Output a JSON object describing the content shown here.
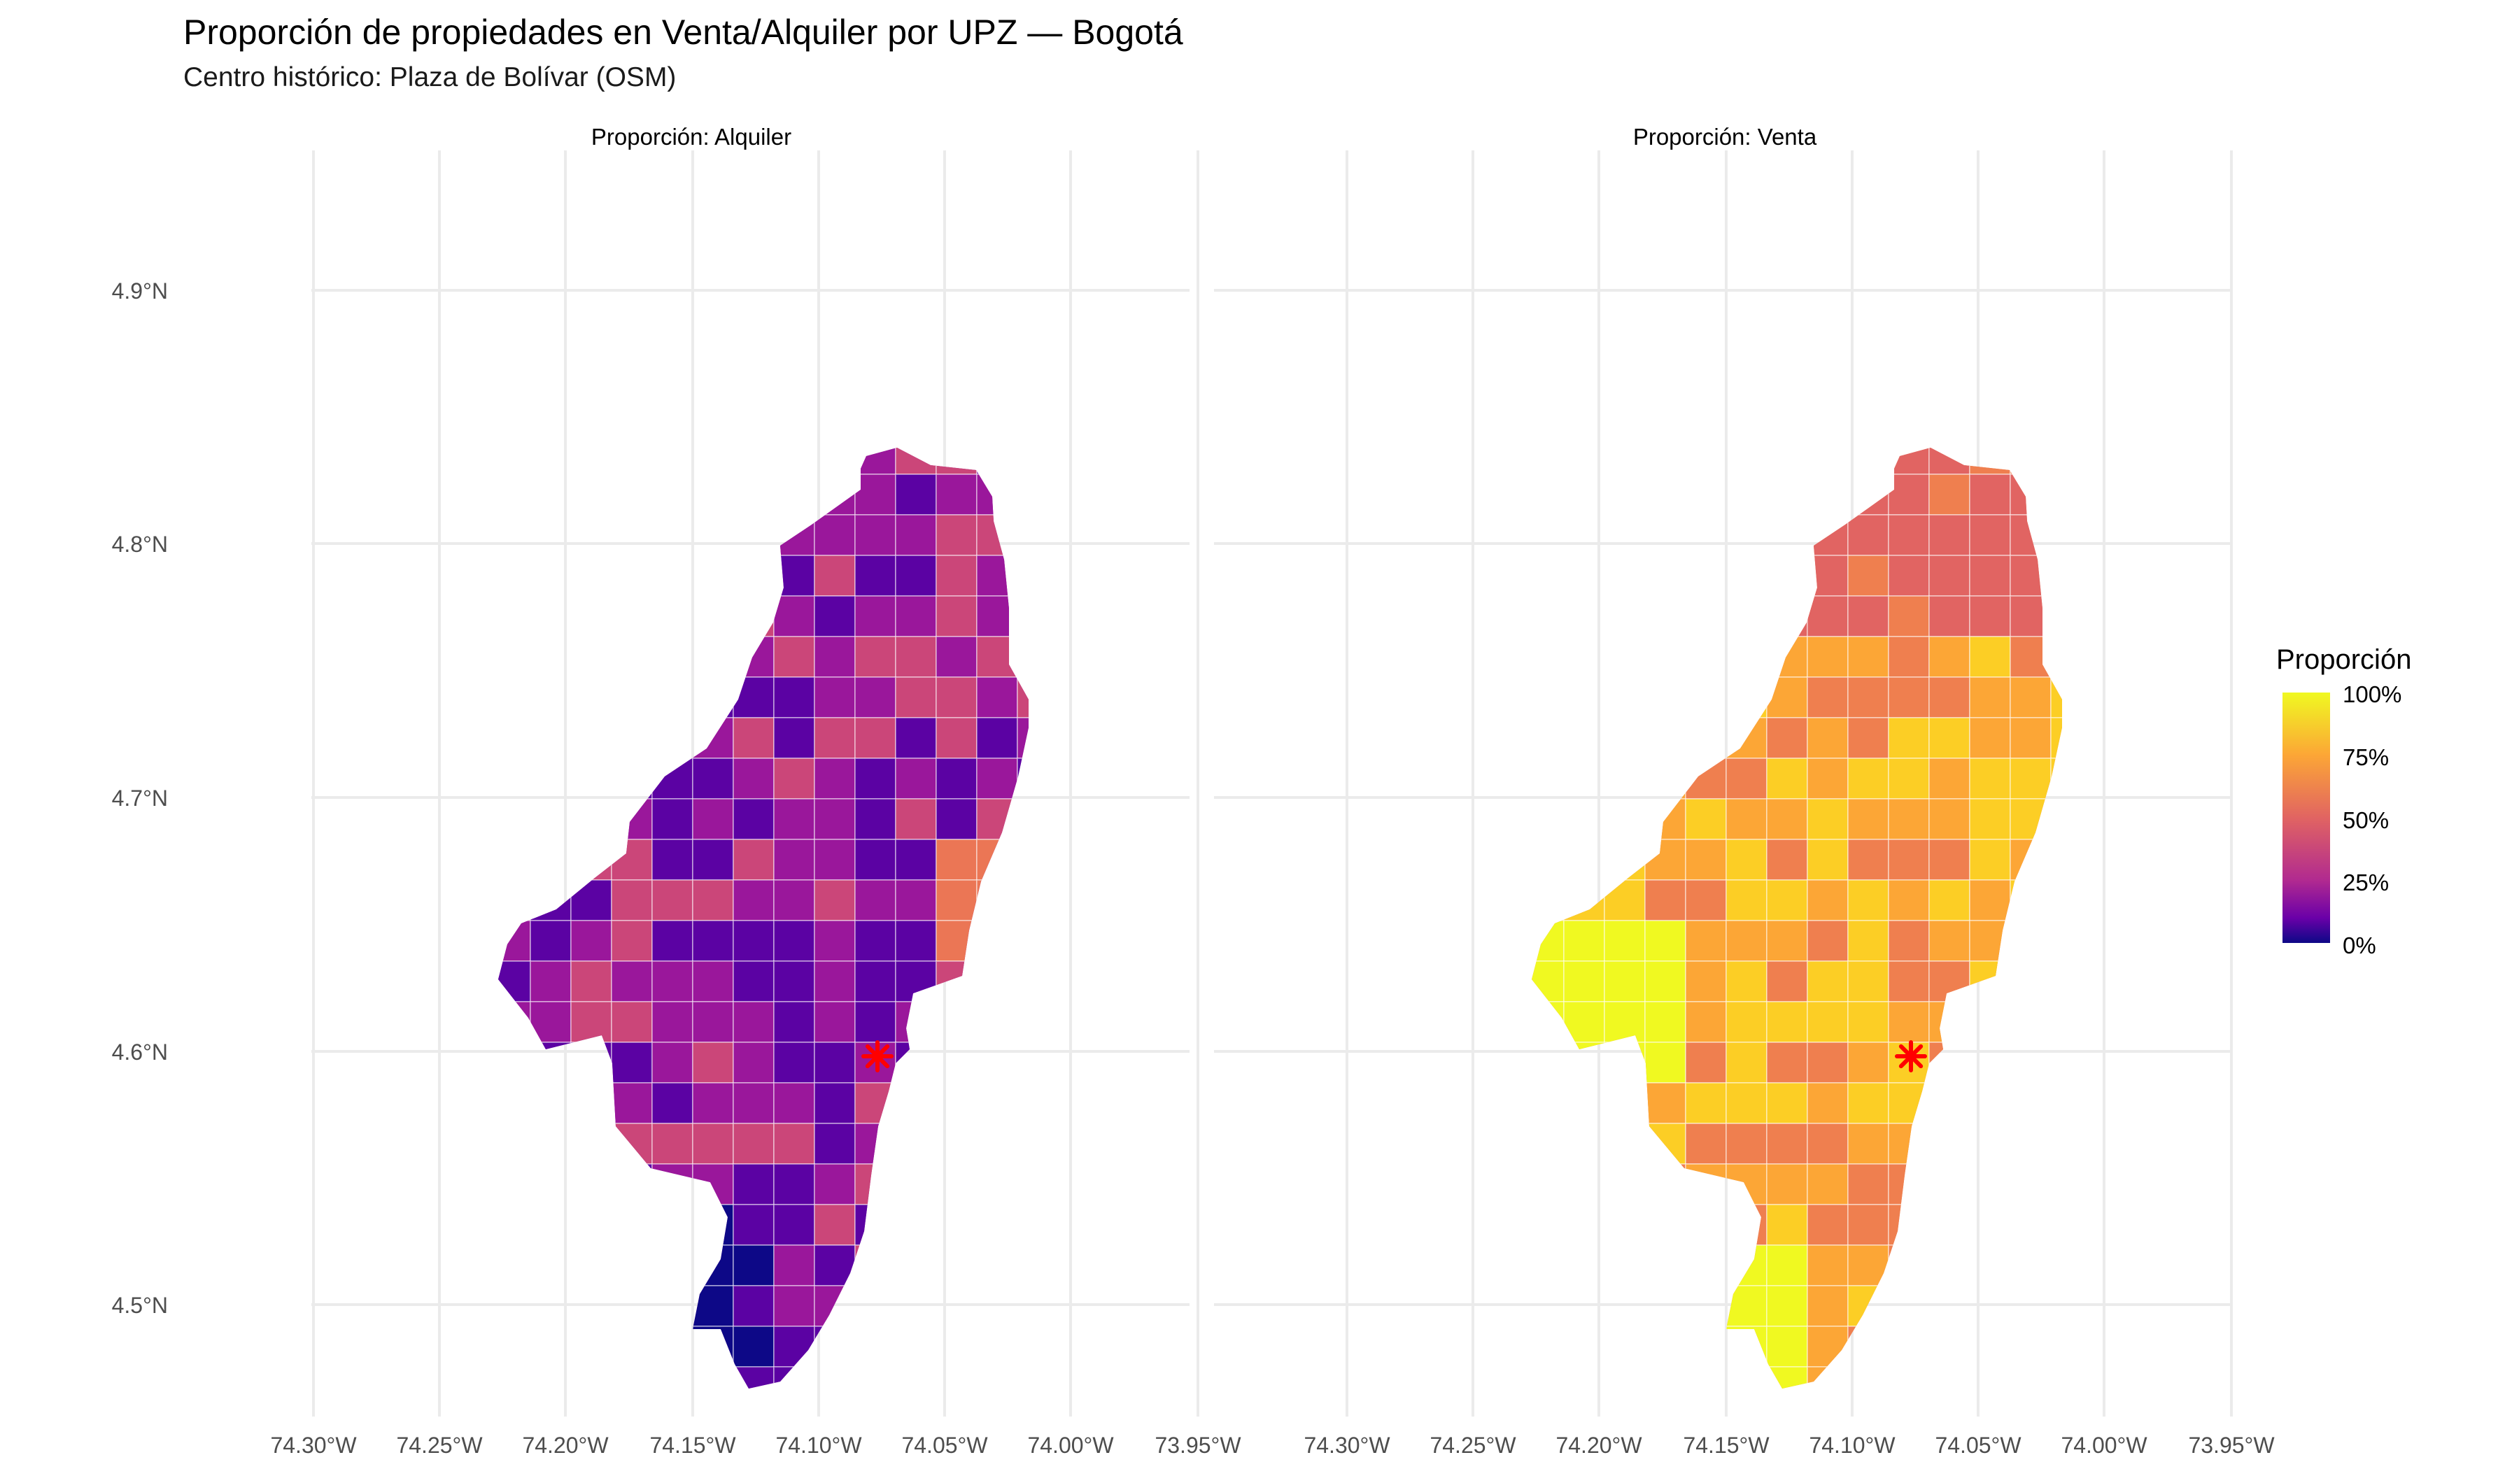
{
  "title": "Proporción de propiedades en Venta/Alquiler por UPZ — Bogotá",
  "subtitle": "Centro histórico: Plaza de Bolívar (OSM)",
  "panels": [
    {
      "strip": "Proporción: Alquiler",
      "palette_stops": [
        "#0d0887",
        "#5b02a3",
        "#9a179b",
        "#cb4679",
        "#eb7655"
      ]
    },
    {
      "strip": "Proporción: Venta",
      "palette_stops": [
        "#e16462",
        "#ef7f4f",
        "#fca636",
        "#fcce25",
        "#f0f921"
      ]
    }
  ],
  "x_ticks": [
    "74.30°W",
    "74.25°W",
    "74.20°W",
    "74.15°W",
    "74.10°W",
    "74.05°W",
    "74.00°W",
    "73.95°W"
  ],
  "y_ticks": [
    "4.9°N",
    "4.8°N",
    "4.7°N",
    "4.6°N",
    "4.5°N"
  ],
  "marker": {
    "name": "Plaza de Bolívar",
    "symbol": "asterisk",
    "color": "#ff0000",
    "lon": -74.076,
    "lat": 4.598
  },
  "legend": {
    "title": "Proporción",
    "labels": [
      "100%",
      "75%",
      "50%",
      "25%",
      "0%"
    ],
    "colors": [
      "#f0f921",
      "#fca636",
      "#e16462",
      "#b12a90",
      "#6a00a8",
      "#0d0887"
    ]
  }
}
